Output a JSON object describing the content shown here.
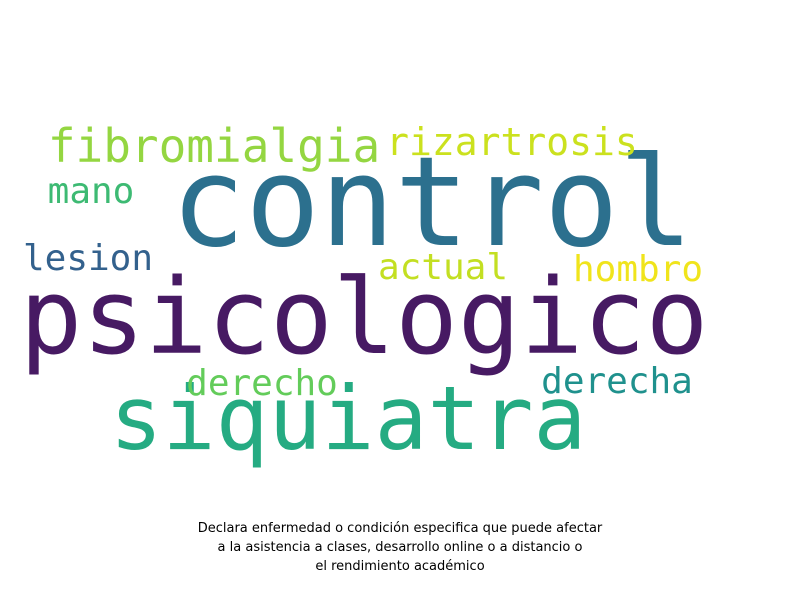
{
  "word_cloud": {
    "words": [
      {
        "id": "control",
        "text": "control",
        "color": "#2c708e"
      },
      {
        "id": "psicologico",
        "text": "psicologico",
        "color": "#471a63"
      },
      {
        "id": "siquiatra",
        "text": "siquiatra",
        "color": "#25ab82"
      },
      {
        "id": "fibromialgia",
        "text": "fibromialgia",
        "color": "#94d641"
      },
      {
        "id": "rizartrosis",
        "text": "rizartrosis",
        "color": "#cbe11e"
      },
      {
        "id": "mano",
        "text": "mano",
        "color": "#3dba73"
      },
      {
        "id": "lesion",
        "text": "lesion",
        "color": "#33618d"
      },
      {
        "id": "actual",
        "text": "actual",
        "color": "#c3df22"
      },
      {
        "id": "hombro",
        "text": "hombro",
        "color": "#f0e41c"
      },
      {
        "id": "derecho",
        "text": "derecho",
        "color": "#63cc5a"
      },
      {
        "id": "derecha",
        "text": "derecha",
        "color": "#1f918d"
      }
    ]
  },
  "caption": {
    "line1": "Declara enfermedad o condición especifica que puede afectar",
    "line2": "a la asistencia a clases, desarrollo online o a distancio o",
    "line3": "el rendimiento académico"
  }
}
